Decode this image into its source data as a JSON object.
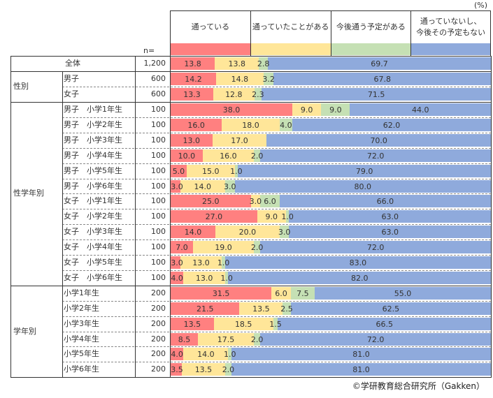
{
  "unit_label": "(%)",
  "n_label": "n=",
  "footer": "©学研教育総合研究所（Gakken）",
  "chart_data": {
    "type": "bar",
    "orientation": "horizontal",
    "stacked": true,
    "percent_stacked": true,
    "title": "",
    "unit": "%",
    "xlim": [
      0,
      100
    ],
    "legend_position": "top",
    "legend": [
      {
        "name": "通っている",
        "color": "#ff8080"
      },
      {
        "name": "通っていたことがある",
        "color": "#ffe699"
      },
      {
        "name": "今後通う予定がある",
        "color": "#c5e0b4"
      },
      {
        "name": "通っていないし、\n今後その予定もない",
        "color": "#8faadc"
      }
    ],
    "groups": [
      {
        "name": "",
        "rows": [
          {
            "label": "全体",
            "n": "1,200",
            "values": [
              13.8,
              13.8,
              2.8,
              69.7
            ],
            "labels": [
              "13.8",
              "13.8",
              "2.8",
              "69.7"
            ]
          }
        ]
      },
      {
        "name": "性別",
        "rows": [
          {
            "label": "男子",
            "n": "600",
            "values": [
              14.2,
              14.8,
              3.2,
              67.8
            ],
            "labels": [
              "14.2",
              "14.8",
              "3.2",
              "67.8"
            ]
          },
          {
            "label": "女子",
            "n": "600",
            "values": [
              13.3,
              12.8,
              2.3,
              71.5
            ],
            "labels": [
              "13.3",
              "12.8",
              "2.3",
              "71.5"
            ]
          }
        ]
      },
      {
        "name": "性学年別",
        "rows": [
          {
            "label": "男子　小学1年生",
            "n": "100",
            "values": [
              38.0,
              9.0,
              9.0,
              44.0
            ],
            "labels": [
              "38.0",
              "9.0",
              "9.0",
              "44.0"
            ]
          },
          {
            "label": "男子　小学2年生",
            "n": "100",
            "values": [
              16.0,
              18.0,
              4.0,
              62.0
            ],
            "labels": [
              "16.0",
              "18.0",
              "4.0",
              "62.0"
            ]
          },
          {
            "label": "男子　小学3年生",
            "n": "100",
            "values": [
              13.0,
              17.0,
              0.0,
              70.0
            ],
            "labels": [
              "13.0",
              "17.0",
              "",
              "70.0"
            ]
          },
          {
            "label": "男子　小学4年生",
            "n": "100",
            "values": [
              10.0,
              16.0,
              2.0,
              72.0
            ],
            "labels": [
              "10.0",
              "16.0",
              "2.0",
              "72.0"
            ]
          },
          {
            "label": "男子　小学5年生",
            "n": "100",
            "values": [
              5.0,
              15.0,
              1.0,
              79.0
            ],
            "labels": [
              "5.0",
              "15.0",
              "1.0",
              "79.0"
            ]
          },
          {
            "label": "男子　小学6年生",
            "n": "100",
            "values": [
              3.0,
              14.0,
              3.0,
              80.0
            ],
            "labels": [
              "3.0",
              "14.0",
              "3.0",
              "80.0"
            ]
          },
          {
            "label": "女子　小学1年生",
            "n": "100",
            "values": [
              25.0,
              3.0,
              6.0,
              66.0
            ],
            "labels": [
              "25.0",
              "3.0",
              "6.0",
              "66.0"
            ]
          },
          {
            "label": "女子　小学2年生",
            "n": "100",
            "values": [
              27.0,
              9.0,
              1.0,
              63.0
            ],
            "labels": [
              "27.0",
              "9.0",
              "1.0",
              "63.0"
            ]
          },
          {
            "label": "女子　小学3年生",
            "n": "100",
            "values": [
              14.0,
              20.0,
              3.0,
              63.0
            ],
            "labels": [
              "14.0",
              "20.0",
              "3.0",
              "63.0"
            ]
          },
          {
            "label": "女子　小学4年生",
            "n": "100",
            "values": [
              7.0,
              19.0,
              2.0,
              72.0
            ],
            "labels": [
              "7.0",
              "19.0",
              "2.0",
              "72.0"
            ]
          },
          {
            "label": "女子　小学5年生",
            "n": "100",
            "values": [
              3.0,
              13.0,
              1.0,
              83.0
            ],
            "labels": [
              "3.0",
              "13.0",
              "1.0",
              "83.0"
            ]
          },
          {
            "label": "女子　小学6年生",
            "n": "100",
            "values": [
              4.0,
              13.0,
              1.0,
              82.0
            ],
            "labels": [
              "4.0",
              "13.0",
              "1.0",
              "82.0"
            ]
          }
        ]
      },
      {
        "name": "学年別",
        "rows": [
          {
            "label": "小学1年生",
            "n": "200",
            "values": [
              31.5,
              6.0,
              7.5,
              55.0
            ],
            "labels": [
              "31.5",
              "6.0",
              "7.5",
              "55.0"
            ]
          },
          {
            "label": "小学2年生",
            "n": "200",
            "values": [
              21.5,
              13.5,
              2.5,
              62.5
            ],
            "labels": [
              "21.5",
              "13.5",
              "2.5",
              "62.5"
            ]
          },
          {
            "label": "小学3年生",
            "n": "200",
            "values": [
              13.5,
              18.5,
              1.5,
              66.5
            ],
            "labels": [
              "13.5",
              "18.5",
              "1.5",
              "66.5"
            ]
          },
          {
            "label": "小学4年生",
            "n": "200",
            "values": [
              8.5,
              17.5,
              2.0,
              72.0
            ],
            "labels": [
              "8.5",
              "17.5",
              "2.0",
              "72.0"
            ]
          },
          {
            "label": "小学5年生",
            "n": "200",
            "values": [
              4.0,
              14.0,
              1.0,
              81.0
            ],
            "labels": [
              "4.0",
              "14.0",
              "1.0",
              "81.0"
            ]
          },
          {
            "label": "小学6年生",
            "n": "200",
            "values": [
              3.5,
              13.5,
              2.0,
              81.0
            ],
            "labels": [
              "3.5",
              "13.5",
              "2.0",
              "81.0"
            ]
          }
        ]
      }
    ]
  }
}
